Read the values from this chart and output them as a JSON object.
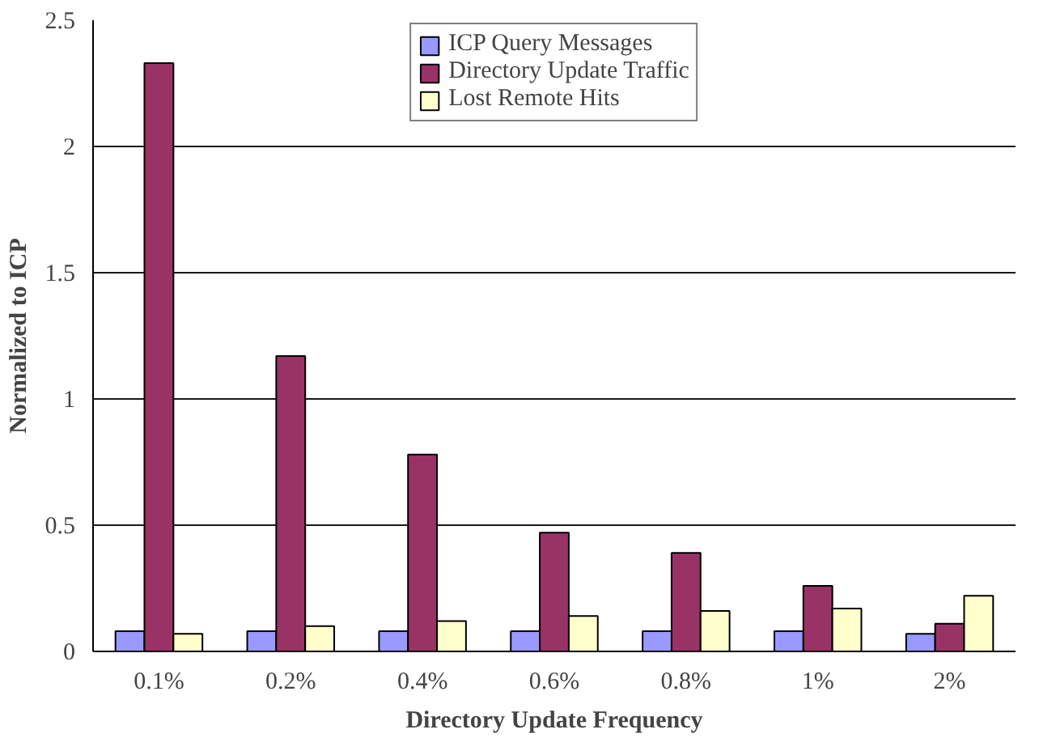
{
  "chart_data": {
    "type": "bar",
    "xlabel": "Directory Update Frequency",
    "ylabel": "Normalized to ICP",
    "categories": [
      "0.1%",
      "0.2%",
      "0.4%",
      "0.6%",
      "0.8%",
      "1%",
      "2%"
    ],
    "series": [
      {
        "name": "ICP Query Messages",
        "color": "#9999ff",
        "values": [
          0.08,
          0.08,
          0.08,
          0.08,
          0.08,
          0.08,
          0.07
        ]
      },
      {
        "name": "Directory Update Traffic",
        "color": "#993366",
        "values": [
          2.33,
          1.17,
          0.78,
          0.47,
          0.39,
          0.26,
          0.11
        ]
      },
      {
        "name": "Lost Remote Hits",
        "color": "#ffffcc",
        "values": [
          0.07,
          0.1,
          0.12,
          0.14,
          0.16,
          0.17,
          0.22
        ]
      }
    ],
    "ylim": [
      0,
      2.5
    ],
    "yticks": [
      0,
      0.5,
      1,
      1.5,
      2,
      2.5
    ],
    "grid": "y",
    "legend": "top"
  }
}
